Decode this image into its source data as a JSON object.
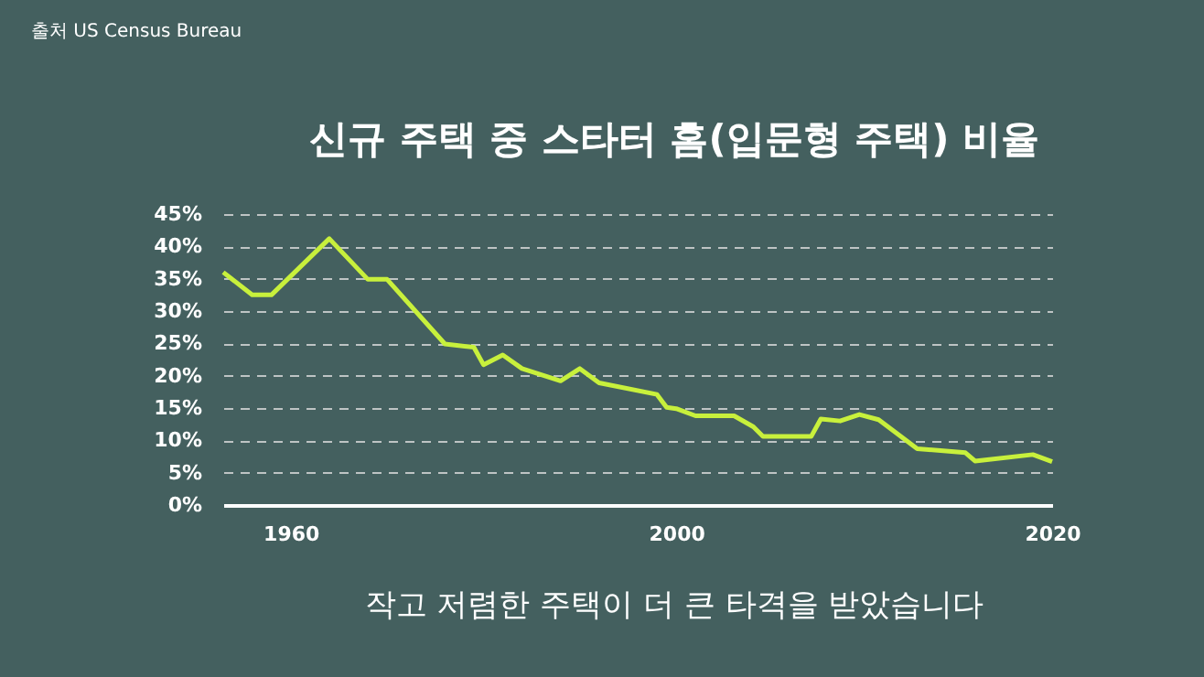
{
  "chart_data": {
    "type": "line",
    "title": "신규 주택 중 스타터 홈(입문형 주택) 비율",
    "annotations": [
      "출처 US Census Bureau",
      "작고 저렴한 주택이 더 큰 타격을 받았습니다"
    ],
    "categories": [
      null,
      null,
      null,
      null,
      null,
      null,
      null,
      "1960",
      null,
      null,
      null,
      null,
      null,
      null,
      null,
      null,
      null,
      null,
      null,
      null,
      null,
      null,
      null,
      null,
      null,
      null,
      null,
      null,
      null,
      null,
      null,
      null,
      null,
      null,
      null,
      null,
      null,
      null,
      null,
      null,
      null,
      null,
      null,
      null,
      null,
      null,
      null,
      "2000",
      null,
      null,
      null,
      null,
      null,
      null,
      null,
      null,
      null,
      null,
      null,
      null,
      null,
      null,
      null,
      null,
      null,
      null,
      null,
      null,
      null,
      null,
      null,
      null,
      null,
      null,
      null,
      null,
      null,
      null,
      null,
      null,
      null,
      null,
      null,
      null,
      null,
      null,
      "2020"
    ],
    "series": [
      {
        "color": "#c8f03c",
        "values": [
          36.0,
          null,
          null,
          32.5,
          null,
          32.5,
          null,
          null,
          null,
          null,
          null,
          41.2,
          null,
          null,
          null,
          34.9,
          null,
          34.9,
          null,
          null,
          null,
          null,
          null,
          24.9,
          null,
          null,
          24.4,
          21.7,
          null,
          23.2,
          null,
          21.1,
          null,
          null,
          null,
          19.2,
          null,
          21.1,
          null,
          18.9,
          null,
          null,
          null,
          null,
          null,
          17.1,
          15.1,
          14.9,
          null,
          13.8,
          null,
          null,
          null,
          13.8,
          null,
          12.1,
          10.6,
          null,
          null,
          null,
          null,
          10.6,
          13.3,
          null,
          13.0,
          null,
          14.0,
          null,
          13.2,
          null,
          null,
          null,
          8.7,
          null,
          null,
          null,
          null,
          8.1,
          6.8,
          null,
          null,
          null,
          null,
          null,
          7.8,
          null,
          6.7
        ]
      }
    ],
    "ylim": [
      0,
      45
    ],
    "yticks": [
      {
        "value": 0,
        "label": "0%"
      },
      {
        "value": 5,
        "label": "5%"
      },
      {
        "value": 10,
        "label": "10%"
      },
      {
        "value": 15,
        "label": "15%"
      },
      {
        "value": 20,
        "label": "20%"
      },
      {
        "value": 25,
        "label": "25%"
      },
      {
        "value": 30,
        "label": "30%"
      },
      {
        "value": 35,
        "label": "35%"
      },
      {
        "value": 40,
        "label": "40%"
      },
      {
        "value": 45,
        "label": "45%"
      }
    ],
    "grid": "y"
  }
}
